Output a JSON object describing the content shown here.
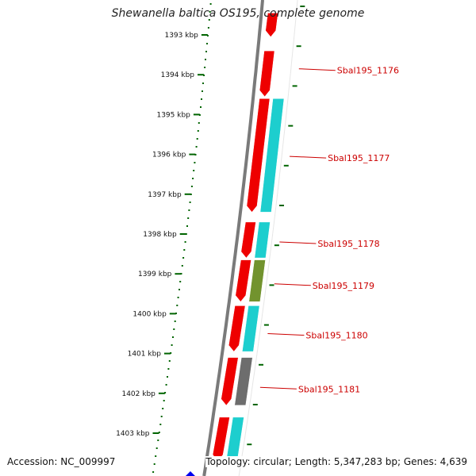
{
  "title": "Shewanella baltica OS195, complete genome",
  "accession_label": "Accession: NC_009997",
  "topology": "Topology: circular; Length: 5,347,283 bp; Genes: 4,639",
  "scale": {
    "unit": "kbp",
    "ticks": [
      {
        "kbp": 1393,
        "label": "1393 kbp"
      },
      {
        "kbp": 1394,
        "label": "1394 kbp"
      },
      {
        "kbp": 1395,
        "label": "1395 kbp"
      },
      {
        "kbp": 1396,
        "label": "1396 kbp"
      },
      {
        "kbp": 1397,
        "label": "1397 kbp"
      },
      {
        "kbp": 1398,
        "label": "1398 kbp"
      },
      {
        "kbp": 1399,
        "label": "1399 kbp"
      },
      {
        "kbp": 1400,
        "label": "1400 kbp"
      },
      {
        "kbp": 1401,
        "label": "1401 kbp"
      },
      {
        "kbp": 1402,
        "label": "1402 kbp"
      },
      {
        "kbp": 1403,
        "label": "1403 kbp"
      }
    ]
  },
  "colors": {
    "backbone": "#7a7a7a",
    "gene_red": "#ee0000",
    "gene_cyan": "#11cccc",
    "gene_olive": "#6b8e23",
    "gene_gray": "#666666",
    "scale_green": "#006400",
    "label_red": "#cc0000",
    "marker_blue": "#0000ee"
  },
  "genes": [
    {
      "name": "",
      "start_kbp": 1392.45,
      "end_kbp": 1393.05,
      "color": "gene_red",
      "direction": "reverse"
    },
    {
      "name": "",
      "start_kbp": 1393.4,
      "end_kbp": 1394.55,
      "color": "gene_red",
      "direction": "reverse"
    },
    {
      "name": "",
      "start_kbp": 1394.6,
      "end_kbp": 1397.45,
      "color": "gene_red",
      "direction": "reverse"
    },
    {
      "name": "",
      "start_kbp": 1397.7,
      "end_kbp": 1398.6,
      "color": "gene_red",
      "direction": "reverse"
    },
    {
      "name": "",
      "start_kbp": 1398.65,
      "end_kbp": 1399.7,
      "color": "gene_red",
      "direction": "reverse"
    },
    {
      "name": "",
      "start_kbp": 1399.8,
      "end_kbp": 1400.95,
      "color": "gene_red",
      "direction": "reverse"
    },
    {
      "name": "",
      "start_kbp": 1401.1,
      "end_kbp": 1402.3,
      "color": "gene_red",
      "direction": "reverse"
    },
    {
      "name": "",
      "start_kbp": 1402.6,
      "end_kbp": 1403.7,
      "color": "gene_red",
      "direction": "reverse"
    }
  ],
  "cds": [
    {
      "name": "Sbal195_1177",
      "start_kbp": 1394.6,
      "end_kbp": 1397.45,
      "color": "gene_cyan"
    },
    {
      "name": "Sbal195_1178",
      "start_kbp": 1397.7,
      "end_kbp": 1398.6,
      "color": "gene_cyan"
    },
    {
      "name": "Sbal195_1179",
      "start_kbp": 1398.65,
      "end_kbp": 1399.7,
      "color": "gene_olive"
    },
    {
      "name": "Sbal195_1180",
      "start_kbp": 1399.8,
      "end_kbp": 1400.95,
      "color": "gene_cyan"
    },
    {
      "name": "Sbal195_1181",
      "start_kbp": 1401.1,
      "end_kbp": 1402.3,
      "color": "gene_gray"
    },
    {
      "name": "",
      "start_kbp": 1402.6,
      "end_kbp": 1403.7,
      "color": "gene_cyan"
    }
  ],
  "labels": [
    {
      "text": "Sbal195_1176",
      "kbp": 1393.85
    },
    {
      "text": "Sbal195_1177",
      "kbp": 1396.05
    },
    {
      "text": "Sbal195_1178",
      "kbp": 1398.2
    },
    {
      "text": "Sbal195_1179",
      "kbp": 1399.25
    },
    {
      "text": "Sbal195_1180",
      "kbp": 1400.5
    },
    {
      "text": "Sbal195_1181",
      "kbp": 1401.85
    }
  ]
}
